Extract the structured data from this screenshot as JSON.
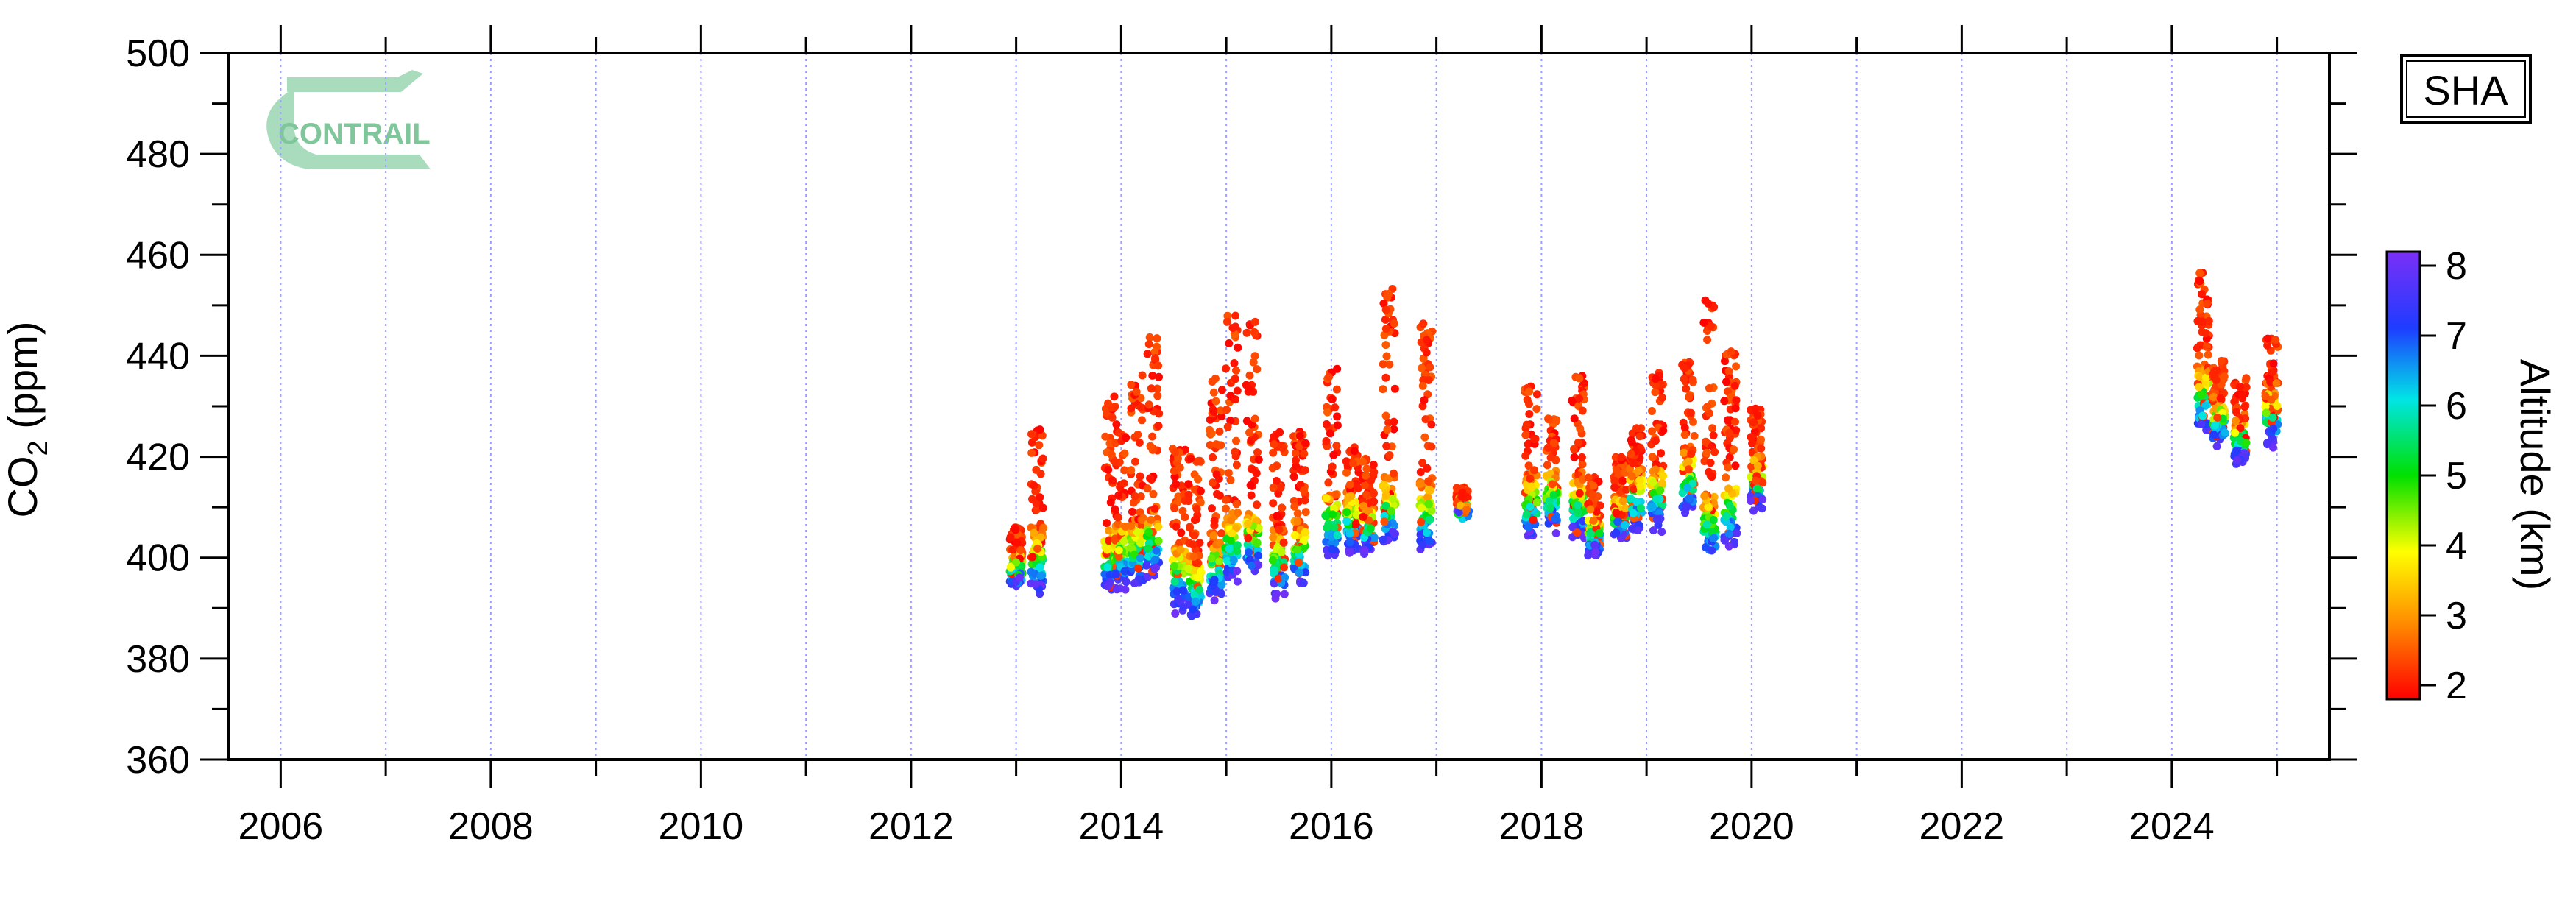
{
  "logo": {
    "text": "CONTRAIL"
  },
  "station_label": "SHA",
  "chart_data": {
    "type": "scatter",
    "title": "",
    "xlabel": "",
    "ylabel": {
      "main": "CO",
      "sub": "2",
      "unit": " (ppm)"
    },
    "xlim": [
      2005.5,
      2025.5
    ],
    "ylim": [
      360,
      500
    ],
    "x_ticks": [
      2006,
      2008,
      2010,
      2012,
      2014,
      2016,
      2018,
      2020,
      2022,
      2024
    ],
    "y_ticks": [
      360,
      380,
      400,
      420,
      440,
      460,
      480,
      500
    ],
    "grid": "vertical dotted at each year",
    "colorbar": {
      "label": "Altitude (km)",
      "range": [
        1.8,
        8.2
      ],
      "ticks": [
        2,
        3,
        4,
        5,
        6,
        7,
        8
      ],
      "colormap": [
        "#ff0000",
        "#ff8c00",
        "#ffff00",
        "#00e000",
        "#00e5e5",
        "#1e3cff",
        "#7b2ff7"
      ]
    },
    "clusters": [
      {
        "x": 2013.0,
        "low": 395,
        "high": 406
      },
      {
        "x": 2013.2,
        "low": 393,
        "high": 426
      },
      {
        "x": 2013.9,
        "low": 393,
        "high": 432
      },
      {
        "x": 2014.0,
        "low": 394,
        "high": 425
      },
      {
        "x": 2014.15,
        "low": 395,
        "high": 437
      },
      {
        "x": 2014.3,
        "low": 397,
        "high": 444
      },
      {
        "x": 2014.55,
        "low": 390,
        "high": 422
      },
      {
        "x": 2014.7,
        "low": 388,
        "high": 420
      },
      {
        "x": 2014.9,
        "low": 392,
        "high": 437
      },
      {
        "x": 2015.05,
        "low": 396,
        "high": 448
      },
      {
        "x": 2015.25,
        "low": 397,
        "high": 447
      },
      {
        "x": 2015.5,
        "low": 393,
        "high": 425
      },
      {
        "x": 2015.7,
        "low": 395,
        "high": 425
      },
      {
        "x": 2016.0,
        "low": 401,
        "high": 438
      },
      {
        "x": 2016.2,
        "low": 402,
        "high": 422
      },
      {
        "x": 2016.35,
        "low": 401,
        "high": 420
      },
      {
        "x": 2016.55,
        "low": 403,
        "high": 454
      },
      {
        "x": 2016.9,
        "low": 402,
        "high": 449
      },
      {
        "x": 2017.25,
        "low": 408,
        "high": 414
      },
      {
        "x": 2017.9,
        "low": 404,
        "high": 434
      },
      {
        "x": 2018.1,
        "low": 406,
        "high": 428
      },
      {
        "x": 2018.35,
        "low": 404,
        "high": 436
      },
      {
        "x": 2018.5,
        "low": 401,
        "high": 416
      },
      {
        "x": 2018.75,
        "low": 404,
        "high": 420
      },
      {
        "x": 2018.9,
        "low": 406,
        "high": 428
      },
      {
        "x": 2019.1,
        "low": 406,
        "high": 437
      },
      {
        "x": 2019.4,
        "low": 409,
        "high": 439
      },
      {
        "x": 2019.6,
        "low": 400,
        "high": 451
      },
      {
        "x": 2019.8,
        "low": 403,
        "high": 441
      },
      {
        "x": 2020.05,
        "low": 410,
        "high": 430
      },
      {
        "x": 2024.3,
        "low": 425,
        "high": 457
      },
      {
        "x": 2024.45,
        "low": 423,
        "high": 440
      },
      {
        "x": 2024.65,
        "low": 419,
        "high": 436
      },
      {
        "x": 2024.95,
        "low": 423,
        "high": 444
      }
    ]
  }
}
